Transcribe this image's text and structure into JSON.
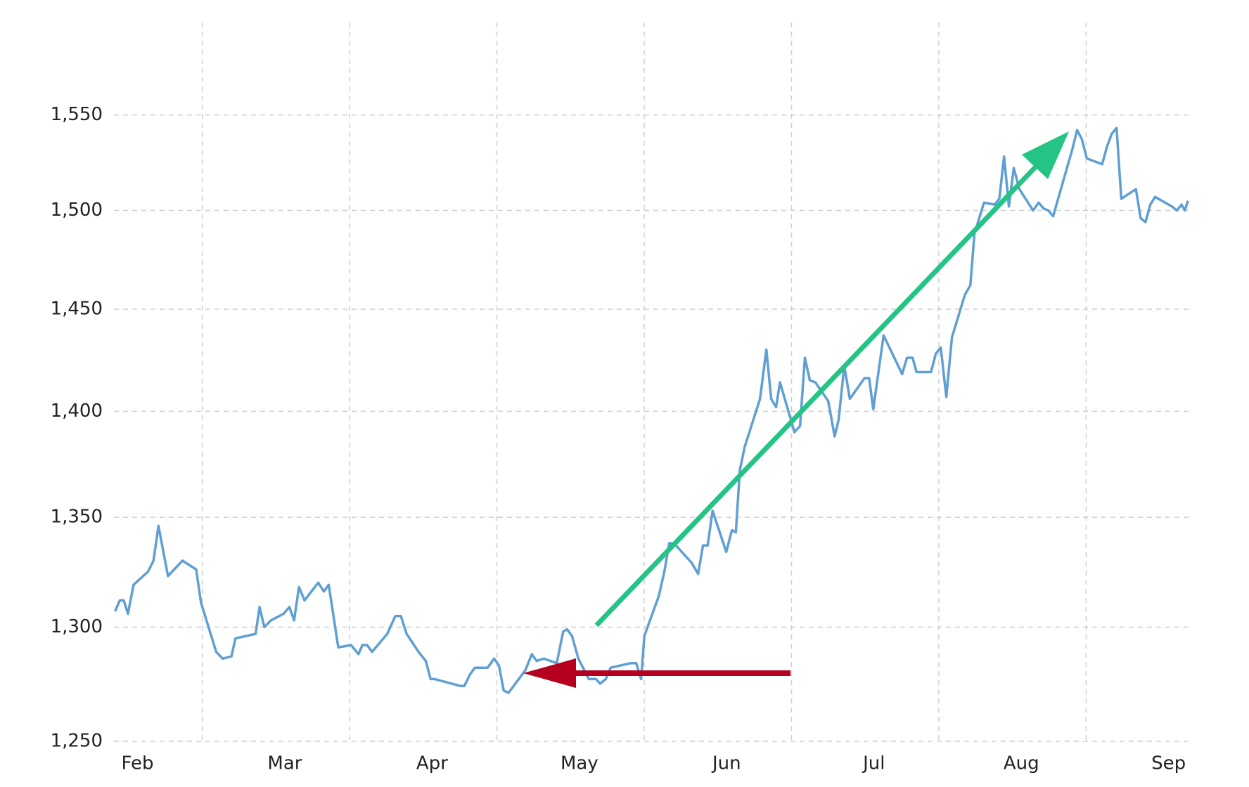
{
  "chart_data": {
    "type": "line",
    "log_y": true,
    "grid": true,
    "color": "#5f9fd3",
    "x": [
      1.847,
      1.88,
      1.907,
      1.935,
      1.973,
      2.071,
      2.109,
      2.142,
      2.207,
      2.305,
      2.398,
      2.431,
      2.534,
      2.578,
      2.638,
      2.665,
      2.736,
      2.802,
      2.829,
      2.861,
      2.905,
      2.992,
      3.031,
      3.063,
      3.096,
      3.134,
      3.227,
      3.265,
      3.298,
      3.363,
      3.45,
      3.5,
      3.527,
      3.559,
      3.592,
      3.696,
      3.75,
      3.788,
      3.827,
      3.908,
      3.957,
      3.99,
      4.017,
      4.192,
      4.219,
      4.257,
      4.29,
      4.377,
      4.421,
      4.454,
      4.486,
      4.519,
      4.634,
      4.677,
      4.71,
      4.759,
      4.846,
      4.89,
      4.917,
      4.95,
      4.993,
      5.064,
      5.113,
      5.141,
      5.179,
      5.212,
      5.348,
      5.386,
      5.419,
      5.441,
      5.539,
      5.577,
      5.61,
      5.642,
      5.762,
      5.806,
      5.839,
      5.871,
      5.904,
      5.997,
      6.035,
      6.062,
      6.089,
      6.122,
      6.226,
      6.269,
      6.302,
      6.335,
      6.362,
      6.46,
      6.498,
      6.531,
      6.564,
      6.602,
      6.689,
      6.733,
      6.76,
      6.798,
      6.836,
      6.935,
      6.967,
      6.995,
      7.065,
      7.191,
      7.224,
      7.262,
      7.289,
      7.387,
      7.42,
      7.453,
      7.491,
      7.529,
      7.616,
      7.654,
      7.682,
      7.747,
      7.818,
      7.851,
      7.883,
      7.916,
      7.949,
      7.987,
      8.08,
      8.118,
      8.151,
      8.183,
      8.216,
      8.347,
      8.379,
      8.412,
      8.445,
      8.549,
      8.581,
      8.614,
      8.647,
      8.679,
      8.778,
      8.81,
      8.843,
      8.876,
      8.908,
      9.023,
      9.056,
      9.088,
      9.11,
      9.132
    ],
    "values": [
      1307,
      1312,
      1312,
      1306,
      1319,
      1325,
      1330,
      1346,
      1323,
      1330,
      1326,
      1311,
      1289,
      1286,
      1287,
      1295,
      1296,
      1297,
      1309,
      1300,
      1303,
      1306,
      1309,
      1303,
      1318,
      1312,
      1320,
      1316,
      1319,
      1291,
      1292,
      1288,
      1292,
      1292,
      1289,
      1297,
      1305,
      1305,
      1297,
      1289,
      1285,
      1277,
      1277,
      1274,
      1274,
      1279,
      1282,
      1282,
      1286,
      1283,
      1272,
      1271,
      1281,
      1288,
      1285,
      1286,
      1284,
      1298,
      1299,
      1296,
      1286,
      1277,
      1277,
      1275,
      1277,
      1282,
      1284,
      1284,
      1277,
      1296,
      1314,
      1325,
      1338,
      1338,
      1329,
      1324,
      1337,
      1337,
      1353,
      1334,
      1344,
      1343,
      1372,
      1383,
      1406,
      1430,
      1406,
      1402,
      1414,
      1390,
      1393,
      1426,
      1415,
      1414,
      1405,
      1388,
      1396,
      1422,
      1406,
      1416,
      1416,
      1401,
      1437,
      1418,
      1426,
      1426,
      1419,
      1419,
      1428,
      1431,
      1407,
      1436,
      1457,
      1462,
      1488,
      1504,
      1503,
      1506,
      1528,
      1502,
      1522,
      1511,
      1500,
      1504,
      1501,
      1500,
      1497,
      1532,
      1542,
      1537,
      1527,
      1524,
      1533,
      1540,
      1543,
      1506,
      1511,
      1496,
      1494,
      1503,
      1507,
      1502,
      1500,
      1503,
      1500,
      1505
    ],
    "xlim": [
      1.84,
      9.14
    ],
    "xticks": [
      {
        "value": 2,
        "label": "Feb"
      },
      {
        "value": 3,
        "label": "Mar"
      },
      {
        "value": 4,
        "label": "Apr"
      },
      {
        "value": 5,
        "label": "May"
      },
      {
        "value": 6,
        "label": "Jun"
      },
      {
        "value": 7,
        "label": "Jul"
      },
      {
        "value": 8,
        "label": "Aug"
      },
      {
        "value": 9,
        "label": "Sep"
      }
    ],
    "ylim": [
      1250,
      1600
    ],
    "yticks": [
      {
        "value": 1250,
        "label": "1,250"
      },
      {
        "value": 1300,
        "label": "1,300"
      },
      {
        "value": 1350,
        "label": "1,350"
      },
      {
        "value": 1400,
        "label": "1,400"
      },
      {
        "value": 1450,
        "label": "1,450"
      },
      {
        "value": 1500,
        "label": "1,500"
      },
      {
        "value": 1550,
        "label": "1,550"
      }
    ]
  }
}
